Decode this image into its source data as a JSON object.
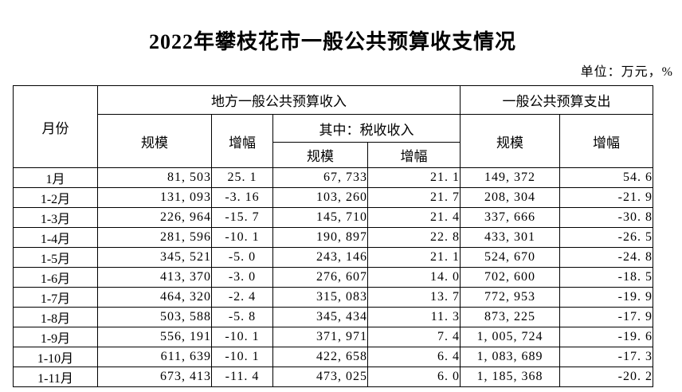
{
  "page": {
    "title": "2022年攀枝花市一般公共预算收支情况",
    "unit_note": "单位：万元，%"
  },
  "table": {
    "header": {
      "month": "月份",
      "revenue_group": "地方一般公共预算收入",
      "expenditure_group": "一般公共预算支出",
      "revenue_scale": "规模",
      "revenue_growth": "增幅",
      "tax_group": "其中：税收收入",
      "tax_scale": "规模",
      "tax_growth": "增幅",
      "expend_scale": "规模",
      "expend_growth": "增幅"
    },
    "rows": [
      [
        "1月",
        "81, 503",
        "25. 1",
        "67, 733",
        "21. 1",
        "149, 372",
        "54. 6"
      ],
      [
        "1-2月",
        "131, 093",
        "-3. 16",
        "103, 260",
        "21. 7",
        "208, 304",
        "-21. 9"
      ],
      [
        "1-3月",
        "226, 964",
        "-15. 7",
        "145, 710",
        "21. 4",
        "337, 666",
        "-30. 8"
      ],
      [
        "1-4月",
        "281, 596",
        "-10. 1",
        "190, 897",
        "22. 8",
        "433, 301",
        "-26. 5"
      ],
      [
        "1-5月",
        "345, 521",
        "-5. 0",
        "243, 146",
        "21. 1",
        "524, 670",
        "-24. 8"
      ],
      [
        "1-6月",
        "413, 370",
        "-3. 0",
        "276, 607",
        "14. 0",
        "702, 600",
        "-18. 5"
      ],
      [
        "1-7月",
        "464, 320",
        "-2. 4",
        "315, 083",
        "13. 7",
        "772, 953",
        "-19. 9"
      ],
      [
        "1-8月",
        "503, 588",
        "-5. 8",
        "345, 434",
        "11. 3",
        "873, 225",
        "-17. 9"
      ],
      [
        "1-9月",
        "556, 191",
        "-10. 1",
        "371, 971",
        "7. 4",
        "1, 005, 724",
        "-19. 6"
      ],
      [
        "1-10月",
        "611, 639",
        "-10. 1",
        "422, 658",
        "6. 4",
        "1, 083, 689",
        "-17. 3"
      ],
      [
        "1-11月",
        "673, 413",
        "-11. 4",
        "473, 025",
        "6. 0",
        "1, 185, 368",
        "-20. 2"
      ]
    ]
  }
}
